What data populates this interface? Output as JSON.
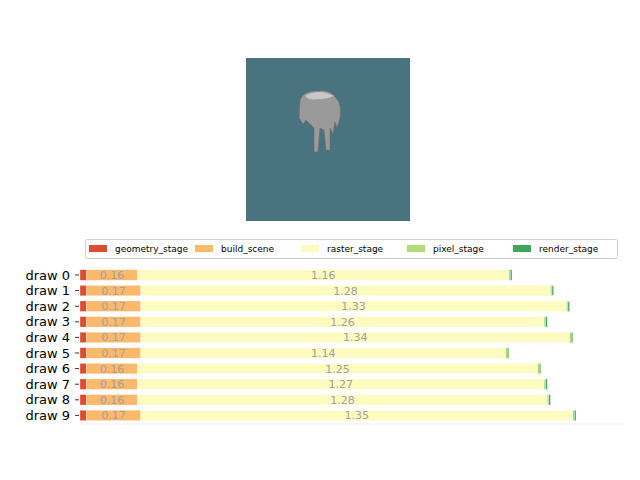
{
  "chart_data": {
    "type": "bar",
    "orientation": "horizontal",
    "stacked": true,
    "data_labels": true,
    "tick_labels": "y",
    "legend": "top",
    "categories": [
      "draw 0",
      "draw 1",
      "draw 2",
      "draw 3",
      "draw 4",
      "draw 5",
      "draw 6",
      "draw 7",
      "draw 8",
      "draw 9"
    ],
    "xlim": [
      0,
      1.7
    ],
    "series": [
      {
        "name": "geometry_stage",
        "color": "#de4b35",
        "values": [
          0.02,
          0.02,
          0.02,
          0.02,
          0.02,
          0.02,
          0.02,
          0.02,
          0.02,
          0.02
        ]
      },
      {
        "name": "build_scene",
        "color": "#fdb96b",
        "values": [
          0.16,
          0.17,
          0.17,
          0.17,
          0.17,
          0.17,
          0.16,
          0.16,
          0.16,
          0.17
        ],
        "value_labels": [
          "0.16",
          "0.17",
          "0.17",
          "0.17",
          "0.17",
          "0.17",
          "0.16",
          "0.16",
          "0.16",
          "0.17"
        ]
      },
      {
        "name": "raster_stage",
        "color": "#fefbc0",
        "values": [
          1.16,
          1.28,
          1.33,
          1.26,
          1.34,
          1.14,
          1.25,
          1.27,
          1.28,
          1.35
        ],
        "value_labels": [
          "1.16",
          "1.28",
          "1.33",
          "1.26",
          "1.34",
          "1.14",
          "1.25",
          "1.27",
          "1.28",
          "1.35"
        ]
      },
      {
        "name": "pixel_stage",
        "color": "#b3dc78",
        "values": [
          0.005,
          0.005,
          0.005,
          0.005,
          0.005,
          0.005,
          0.005,
          0.005,
          0.005,
          0.005
        ]
      },
      {
        "name": "render_stage",
        "color": "#3fa85a",
        "values": [
          0.005,
          0.005,
          0.005,
          0.005,
          0.005,
          0.005,
          0.005,
          0.005,
          0.005,
          0.005
        ]
      }
    ]
  }
}
